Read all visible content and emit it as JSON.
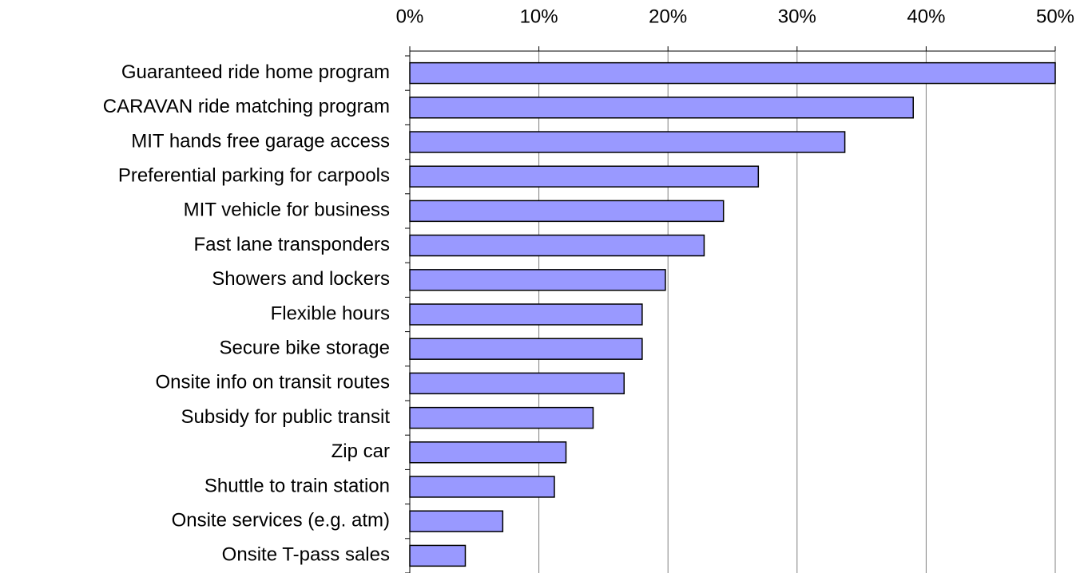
{
  "chart_data": {
    "type": "bar",
    "orientation": "horizontal",
    "categories": [
      "Guaranteed ride home program",
      "CARAVAN ride matching program",
      "MIT hands free garage access",
      "Preferential parking for carpools",
      "MIT vehicle for business",
      "Fast lane transponders",
      "Showers and lockers",
      "Flexible hours",
      "Secure bike storage",
      "Onsite info on transit routes",
      "Subsidy for public transit",
      "Zip car",
      "Shuttle to train station",
      "Onsite services (e.g. atm)",
      "Onsite T-pass sales"
    ],
    "values": [
      50,
      39,
      33.7,
      27,
      24.3,
      22.8,
      19.8,
      18,
      18,
      16.6,
      14.2,
      12.1,
      11.2,
      7.2,
      4.3
    ],
    "color": "#9999ff",
    "xlim": [
      0,
      50
    ],
    "xticks": [
      {
        "value": 0,
        "label": "0%"
      },
      {
        "value": 10,
        "label": "10%"
      },
      {
        "value": 20,
        "label": "20%"
      },
      {
        "value": 30,
        "label": "30%"
      },
      {
        "value": 40,
        "label": "40%"
      },
      {
        "value": 50,
        "label": "50%"
      }
    ],
    "grid": true
  }
}
